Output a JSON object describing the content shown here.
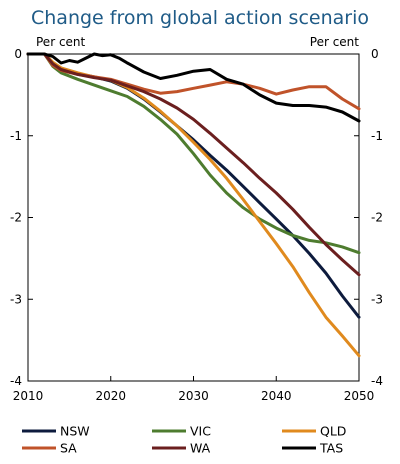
{
  "chart_data": {
    "type": "line",
    "title": "Change from global action scenario",
    "ylabel_left": "Per cent",
    "ylabel_right": "Per cent",
    "xlim": [
      2010,
      2050
    ],
    "ylim": [
      -4,
      0
    ],
    "x_ticks": [
      2010,
      2020,
      2030,
      2040,
      2050
    ],
    "y_ticks": [
      0,
      -1,
      -2,
      -3,
      -4
    ],
    "grid": false,
    "legend_placement": "bottom",
    "series": [
      {
        "name": "NSW",
        "color": "#0d1b3d",
        "x": [
          2010,
          2012,
          2013,
          2014,
          2016,
          2018,
          2020,
          2022,
          2024,
          2026,
          2028,
          2030,
          2032,
          2034,
          2036,
          2038,
          2040,
          2042,
          2044,
          2046,
          2048,
          2050
        ],
        "y": [
          0,
          0,
          -0.12,
          -0.18,
          -0.24,
          -0.28,
          -0.33,
          -0.42,
          -0.55,
          -0.71,
          -0.88,
          -1.05,
          -1.24,
          -1.42,
          -1.62,
          -1.82,
          -2.02,
          -2.22,
          -2.44,
          -2.68,
          -2.96,
          -3.22
        ]
      },
      {
        "name": "VIC",
        "color": "#4e7c2f",
        "x": [
          2010,
          2012,
          2013,
          2014,
          2016,
          2018,
          2020,
          2022,
          2024,
          2026,
          2028,
          2030,
          2032,
          2034,
          2036,
          2038,
          2040,
          2042,
          2044,
          2046,
          2048,
          2050
        ],
        "y": [
          0,
          0,
          -0.15,
          -0.23,
          -0.31,
          -0.38,
          -0.45,
          -0.52,
          -0.64,
          -0.8,
          -0.98,
          -1.22,
          -1.48,
          -1.7,
          -1.88,
          -2.02,
          -2.13,
          -2.22,
          -2.28,
          -2.31,
          -2.36,
          -2.43
        ]
      },
      {
        "name": "QLD",
        "color": "#e08a1e",
        "x": [
          2010,
          2012,
          2013,
          2014,
          2016,
          2018,
          2020,
          2022,
          2024,
          2026,
          2028,
          2030,
          2032,
          2034,
          2036,
          2038,
          2040,
          2042,
          2044,
          2046,
          2048,
          2050
        ],
        "y": [
          0,
          0,
          -0.1,
          -0.17,
          -0.23,
          -0.28,
          -0.32,
          -0.41,
          -0.54,
          -0.7,
          -0.88,
          -1.08,
          -1.29,
          -1.52,
          -1.78,
          -2.05,
          -2.32,
          -2.6,
          -2.92,
          -3.22,
          -3.45,
          -3.69
        ]
      },
      {
        "name": "SA",
        "color": "#c0532a",
        "x": [
          2010,
          2012,
          2013,
          2014,
          2016,
          2018,
          2020,
          2022,
          2024,
          2026,
          2028,
          2030,
          2032,
          2034,
          2036,
          2038,
          2040,
          2042,
          2044,
          2046,
          2048,
          2050
        ],
        "y": [
          0,
          0,
          -0.14,
          -0.2,
          -0.25,
          -0.28,
          -0.31,
          -0.37,
          -0.43,
          -0.48,
          -0.46,
          -0.42,
          -0.38,
          -0.34,
          -0.37,
          -0.42,
          -0.49,
          -0.44,
          -0.4,
          -0.4,
          -0.55,
          -0.67
        ]
      },
      {
        "name": "WA",
        "color": "#6b1f1f",
        "x": [
          2010,
          2012,
          2013,
          2014,
          2016,
          2018,
          2020,
          2022,
          2024,
          2026,
          2028,
          2030,
          2032,
          2034,
          2036,
          2038,
          2040,
          2042,
          2044,
          2046,
          2048,
          2050
        ],
        "y": [
          0,
          0,
          -0.12,
          -0.19,
          -0.25,
          -0.29,
          -0.32,
          -0.39,
          -0.46,
          -0.55,
          -0.66,
          -0.8,
          -0.97,
          -1.15,
          -1.33,
          -1.52,
          -1.7,
          -1.9,
          -2.12,
          -2.33,
          -2.52,
          -2.7
        ]
      },
      {
        "name": "TAS",
        "color": "#000000",
        "x": [
          2010,
          2012,
          2013,
          2014,
          2015,
          2016,
          2017,
          2018,
          2019,
          2020,
          2021,
          2022,
          2024,
          2026,
          2028,
          2030,
          2032,
          2034,
          2036,
          2038,
          2040,
          2042,
          2044,
          2046,
          2048,
          2050
        ],
        "y": [
          0,
          0,
          -0.03,
          -0.11,
          -0.08,
          -0.1,
          -0.05,
          0,
          -0.02,
          -0.01,
          -0.05,
          -0.11,
          -0.22,
          -0.3,
          -0.26,
          -0.21,
          -0.19,
          -0.31,
          -0.37,
          -0.5,
          -0.6,
          -0.63,
          -0.63,
          -0.65,
          -0.71,
          -0.82
        ]
      }
    ]
  }
}
